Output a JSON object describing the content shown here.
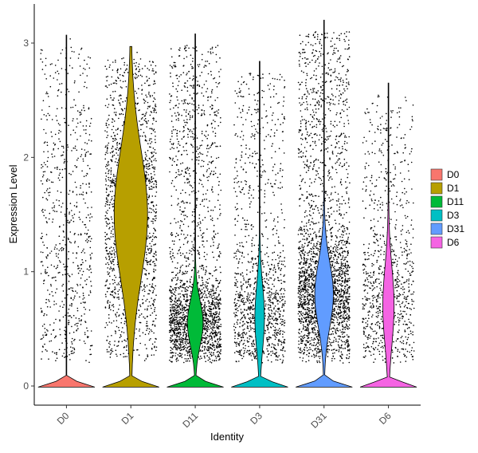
{
  "chart_data": {
    "type": "violin",
    "title": "",
    "xlabel": "Identity",
    "ylabel": "Expression Level",
    "categories": [
      "D0",
      "D1",
      "D11",
      "D3",
      "D31",
      "D6"
    ],
    "ylim": [
      -0.17,
      3.35
    ],
    "yticks": [
      0,
      1,
      2,
      3
    ],
    "yticks_labels": [
      "0",
      "1",
      "2",
      "3"
    ],
    "grid": false,
    "legend_position": "right",
    "series": [
      {
        "name": "D0",
        "color": "#F8766D",
        "max": 3.07,
        "zero_fraction": 0.72,
        "points": 700,
        "mode": 1.1,
        "spread": 1.35
      },
      {
        "name": "D1",
        "color": "#B79F00",
        "max": 2.97,
        "zero_fraction": 0.1,
        "points": 1700,
        "mode": 1.5,
        "spread": 1.0
      },
      {
        "name": "D11",
        "color": "#00BA38",
        "max": 3.08,
        "zero_fraction": 0.3,
        "points": 2100,
        "mode": 0.55,
        "spread": 0.35
      },
      {
        "name": "D3",
        "color": "#00BFC4",
        "max": 2.84,
        "zero_fraction": 0.45,
        "points": 1200,
        "mode": 0.6,
        "spread": 0.5
      },
      {
        "name": "D31",
        "color": "#619CFF",
        "max": 3.2,
        "zero_fraction": 0.25,
        "points": 2600,
        "mode": 0.8,
        "spread": 0.5
      },
      {
        "name": "D6",
        "color": "#F564E3",
        "max": 2.65,
        "zero_fraction": 0.4,
        "points": 900,
        "mode": 0.7,
        "spread": 0.6
      }
    ]
  }
}
